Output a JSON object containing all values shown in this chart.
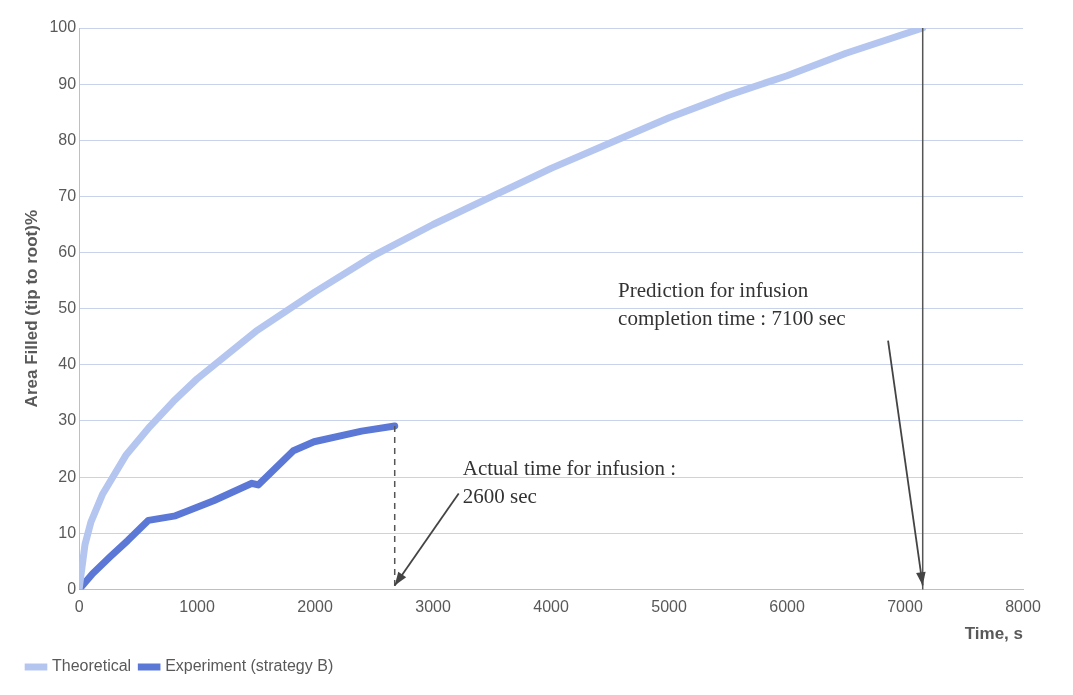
{
  "chart_data": {
    "type": "line",
    "xlabel": "Time, s",
    "ylabel": "Area Filled (tip to root)%",
    "xlim": [
      0,
      8000
    ],
    "xticks": [
      0,
      1000,
      2000,
      3000,
      4000,
      5000,
      6000,
      7000,
      8000
    ],
    "ylim": [
      0,
      100
    ],
    "yticks": [
      0,
      10,
      20,
      30,
      40,
      50,
      60,
      70,
      80,
      90,
      100
    ],
    "grid": "y",
    "legend": "bottom left",
    "marker": "none",
    "line_style": "solid",
    "series": [
      {
        "name": "Theoretical",
        "color": "#b4c6f0",
        "x": [
          0,
          50,
          100,
          200,
          400,
          600,
          800,
          1000,
          1500,
          2000,
          2500,
          3000,
          3500,
          4000,
          4500,
          5000,
          5500,
          6000,
          6500,
          7150
        ],
        "values": [
          0,
          8,
          12,
          17,
          24,
          29,
          33.5,
          37.5,
          46,
          53,
          59.5,
          65,
          70,
          75,
          79.5,
          84,
          88,
          91.5,
          95.5,
          100
        ]
      },
      {
        "name": "Experiment (strategy B)",
        "color": "#5b78d6",
        "x": [
          0,
          114,
          263,
          412,
          588,
          816,
          1140,
          1465,
          1518,
          1816,
          1991,
          2395,
          2675
        ],
        "values": [
          0,
          2.8,
          5.8,
          8.7,
          12.3,
          13.1,
          15.8,
          18.9,
          18.6,
          24.7,
          26.3,
          28.2,
          29.1
        ]
      }
    ],
    "ref_lines": [
      {
        "axis": "x",
        "value": 2675,
        "color": "#555555",
        "line_style": "dashed"
      },
      {
        "axis": "x",
        "value": 7150,
        "color": "#555555",
        "line_style": "solid"
      }
    ],
    "annotations": [
      {
        "text": "Actual time for infusion : 2600 sec",
        "x": 2675,
        "y": 0
      },
      "Prediction for infusion completion time : 7100 sec"
    ]
  }
}
